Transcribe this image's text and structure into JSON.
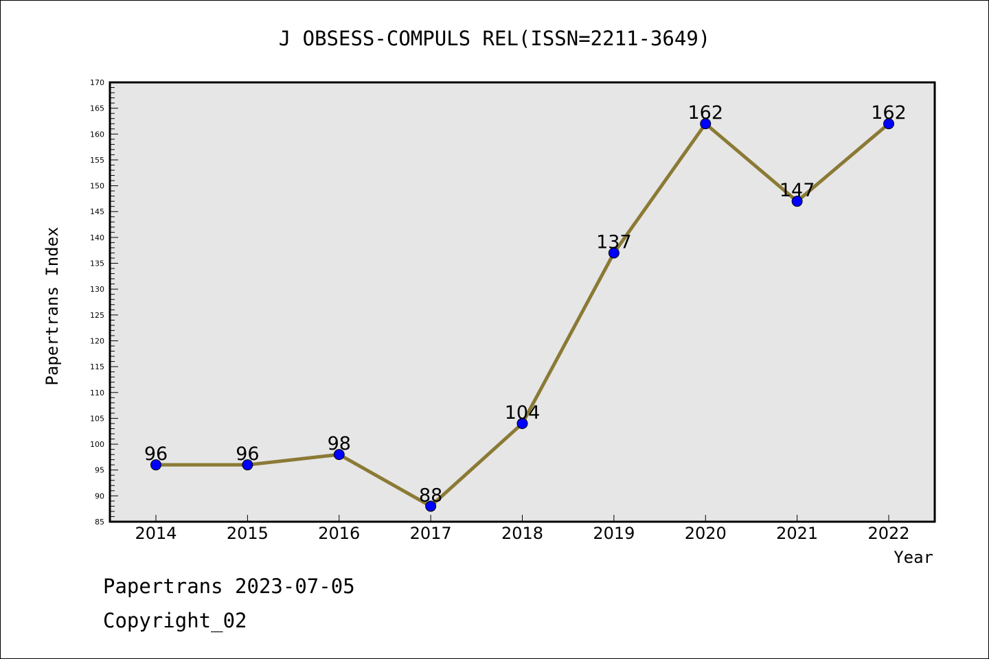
{
  "chart_data": {
    "type": "line",
    "title": "J OBSESS-COMPULS REL(ISSN=2211-3649)",
    "xlabel": "Year",
    "ylabel": "Papertrans Index",
    "categories": [
      "2014",
      "2015",
      "2016",
      "2017",
      "2018",
      "2019",
      "2020",
      "2021",
      "2022"
    ],
    "series": [
      {
        "values": [
          96,
          96,
          98,
          88,
          104,
          137,
          162,
          147,
          162
        ]
      }
    ],
    "ylim": [
      85,
      170
    ],
    "ytick_step": 5,
    "grid": false,
    "line_color": "#8b7a35",
    "marker_color": "#0000ff",
    "plot_background": "#e6e6e6"
  },
  "footer": {
    "line1": "Papertrans 2023-07-05",
    "line2": "Copyright_02"
  }
}
